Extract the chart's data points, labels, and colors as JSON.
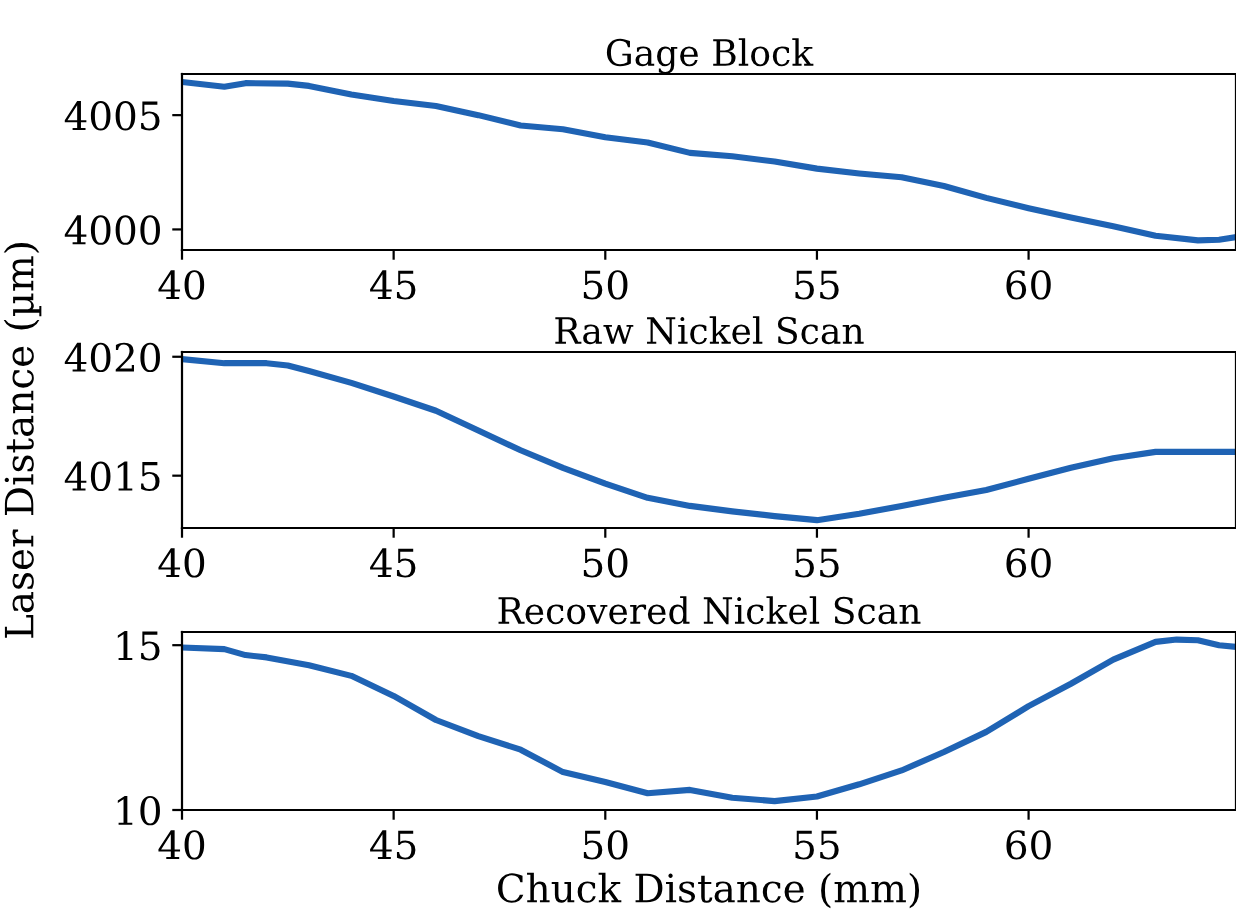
{
  "chart_data": [
    {
      "type": "line",
      "title": "Gage Block",
      "x": [
        40,
        41,
        41.5,
        42.5,
        43,
        44,
        45,
        46,
        47,
        48,
        49,
        50,
        51,
        52,
        53,
        54,
        55,
        56,
        57,
        58,
        59,
        60,
        61,
        62,
        63,
        64,
        64.5,
        64.9
      ],
      "series": [
        {
          "color": "#1f63b4",
          "values": [
            4006.45,
            4006.24,
            4006.4,
            4006.38,
            4006.28,
            4005.9,
            4005.62,
            4005.4,
            4005,
            4004.55,
            4004.38,
            4004.03,
            4003.8,
            4003.35,
            4003.2,
            4002.97,
            4002.66,
            4002.45,
            4002.28,
            4001.9,
            4001.38,
            4000.93,
            4000.52,
            4000.14,
            3999.72,
            3999.52,
            3999.55,
            3999.66
          ]
        }
      ],
      "xlim": [
        40,
        64.9
      ],
      "ylim": [
        3999.1,
        4006.8
      ],
      "xticks": [
        40,
        45,
        50,
        55,
        60
      ],
      "yticks": [
        4000,
        4005
      ],
      "grid": false,
      "legend": false
    },
    {
      "type": "line",
      "title": "Raw Nickel Scan",
      "ylabel": "Laser Distance (µm)",
      "x": [
        40,
        41,
        42,
        42.5,
        43,
        44,
        45,
        46,
        47,
        48,
        49,
        50,
        51,
        52,
        53,
        54,
        55,
        56,
        57,
        58,
        59,
        60,
        61,
        62,
        63,
        64,
        64.9
      ],
      "series": [
        {
          "color": "#1f63b4",
          "values": [
            4019.9,
            4019.73,
            4019.73,
            4019.63,
            4019.4,
            4018.9,
            4018.33,
            4017.73,
            4016.9,
            4016.07,
            4015.33,
            4014.67,
            4014.07,
            4013.73,
            4013.5,
            4013.3,
            4013.13,
            4013.4,
            4013.73,
            4014.07,
            4014.4,
            4014.87,
            4015.33,
            4015.73,
            4016,
            4016,
            4016
          ]
        }
      ],
      "xlim": [
        40,
        64.9
      ],
      "ylim": [
        4012.8,
        4020.2
      ],
      "xticks": [
        40,
        45,
        50,
        55,
        60
      ],
      "yticks": [
        4015,
        4020
      ],
      "grid": false,
      "legend": false
    },
    {
      "type": "line",
      "title": "Recovered Nickel Scan",
      "xlabel": "Chuck Distance (mm)",
      "x": [
        40,
        41,
        41.5,
        42,
        43,
        44,
        45,
        46,
        47,
        48,
        49,
        50,
        51,
        52,
        53,
        54,
        55,
        56,
        57,
        58,
        59,
        60,
        61,
        62,
        63,
        63.5,
        64,
        64.5,
        64.9
      ],
      "series": [
        {
          "color": "#1f63b4",
          "values": [
            14.93,
            14.88,
            14.7,
            14.63,
            14.39,
            14.07,
            13.46,
            12.73,
            12.24,
            11.83,
            11.15,
            10.85,
            10.51,
            10.61,
            10.37,
            10.27,
            10.41,
            10.78,
            11.2,
            11.76,
            12.37,
            13.15,
            13.83,
            14.56,
            15.1,
            15.17,
            15.15,
            15,
            14.95
          ]
        }
      ],
      "xlim": [
        40,
        64.9
      ],
      "ylim": [
        10,
        15.4
      ],
      "xticks": [
        40,
        45,
        50,
        55,
        60
      ],
      "yticks": [
        10,
        15
      ],
      "grid": false,
      "legend": false
    }
  ]
}
